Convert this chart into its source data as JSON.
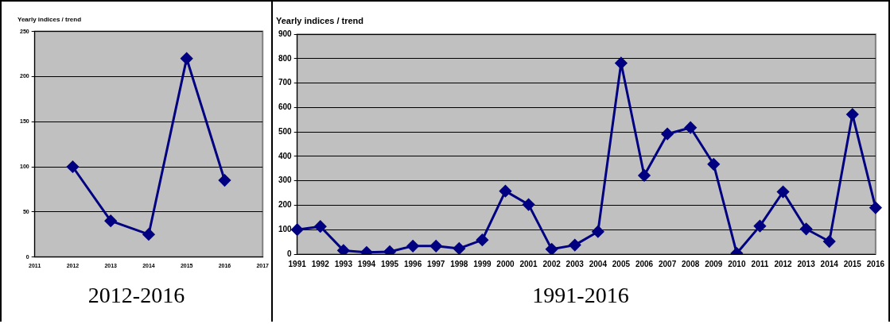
{
  "chart_data": [
    {
      "type": "line",
      "title": "Yearly indices / trend",
      "x": [
        2012,
        2013,
        2014,
        2015,
        2016
      ],
      "series": [
        {
          "color": "#000080",
          "values": [
            100,
            40,
            25,
            220,
            85
          ]
        }
      ],
      "xlim": [
        2011,
        2017
      ],
      "xticks": [
        2011,
        2012,
        2013,
        2014,
        2015,
        2016,
        2017
      ],
      "ylim": [
        0,
        250
      ],
      "yticks": [
        0,
        50,
        100,
        150,
        200,
        250
      ],
      "grid": "y",
      "legend": false,
      "marker": "diamond",
      "line_style": "solid",
      "annotations": [
        "2012-2016"
      ]
    },
    {
      "type": "line",
      "title": "Yearly indices / trend",
      "categories": [
        "1991",
        "1992",
        "1993",
        "1994",
        "1995",
        "1996",
        "1997",
        "1998",
        "1999",
        "2000",
        "2001",
        "2002",
        "2003",
        "2004",
        "2005",
        "2006",
        "2007",
        "2008",
        "2009",
        "2010",
        "2011",
        "2012",
        "2013",
        "2014",
        "2015",
        "2016"
      ],
      "series": [
        {
          "color": "#000080",
          "values": [
            100,
            113,
            15,
            7,
            10,
            33,
            33,
            23,
            58,
            258,
            203,
            20,
            37,
            92,
            782,
            322,
            492,
            518,
            368,
            3,
            115,
            255,
            103,
            52,
            572,
            190
          ]
        }
      ],
      "ylim": [
        0,
        900
      ],
      "yticks": [
        0,
        100,
        200,
        300,
        400,
        500,
        600,
        700,
        800,
        900
      ],
      "grid": "y",
      "legend": false,
      "marker": "diamond",
      "line_style": "solid",
      "annotations": [
        "1991-2016"
      ]
    }
  ]
}
